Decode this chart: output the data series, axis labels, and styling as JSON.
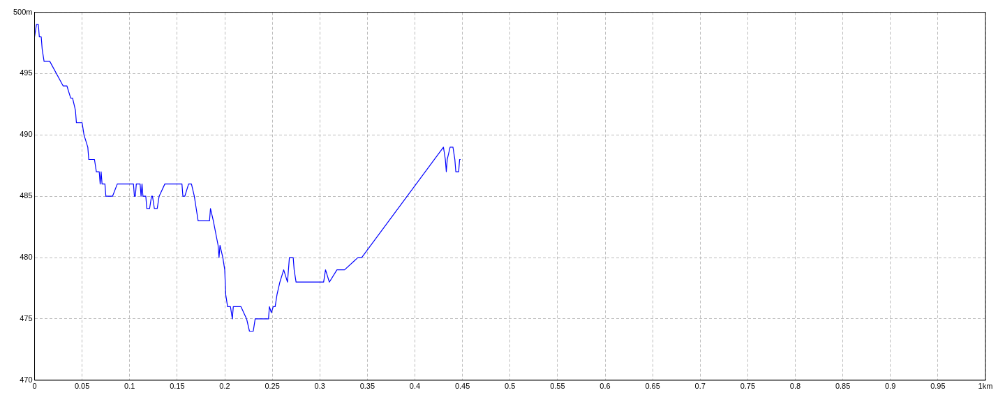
{
  "chart_data": {
    "type": "line",
    "x": [
      0,
      0.002,
      0.004,
      0.005,
      0.007,
      0.008,
      0.01,
      0.016,
      0.03,
      0.034,
      0.038,
      0.04,
      0.043,
      0.044,
      0.05,
      0.052,
      0.056,
      0.057,
      0.063,
      0.065,
      0.068,
      0.069,
      0.07,
      0.071,
      0.074,
      0.075,
      0.082,
      0.087,
      0.104,
      0.105,
      0.106,
      0.107,
      0.111,
      0.112,
      0.113,
      0.114,
      0.117,
      0.118,
      0.121,
      0.123,
      0.124,
      0.126,
      0.129,
      0.131,
      0.137,
      0.155,
      0.156,
      0.158,
      0.162,
      0.165,
      0.168,
      0.17,
      0.172,
      0.184,
      0.185,
      0.188,
      0.193,
      0.194,
      0.195,
      0.198,
      0.2,
      0.201,
      0.203,
      0.206,
      0.208,
      0.209,
      0.217,
      0.223,
      0.226,
      0.23,
      0.232,
      0.246,
      0.247,
      0.249,
      0.251,
      0.253,
      0.255,
      0.258,
      0.262,
      0.264,
      0.266,
      0.268,
      0.272,
      0.273,
      0.275,
      0.304,
      0.306,
      0.31,
      0.318,
      0.326,
      0.34,
      0.344,
      0.43,
      0.432,
      0.433,
      0.434,
      0.437,
      0.44,
      0.442,
      0.443,
      0.446,
      0.447,
      0.448
    ],
    "series": [
      {
        "color": "#0000ff",
        "values": [
          498,
          499,
          499,
          498,
          498,
          497,
          496,
          496,
          494,
          494,
          493,
          493,
          492,
          491,
          491,
          490,
          489,
          488,
          488,
          487,
          487,
          486,
          487,
          486,
          486,
          485,
          485,
          486,
          486,
          485,
          485,
          486,
          486,
          485,
          486,
          485,
          485,
          484,
          484,
          485,
          485,
          484,
          484,
          485,
          486,
          486,
          485,
          485,
          486,
          486,
          485,
          484,
          483,
          483,
          484,
          483,
          481,
          480,
          481,
          480,
          479,
          477,
          476,
          476,
          475,
          476,
          476,
          475,
          474,
          474,
          475,
          475,
          476,
          475.5,
          476,
          476,
          477,
          478,
          479,
          478.5,
          478,
          480,
          480,
          479,
          478,
          478,
          479,
          478,
          479,
          479,
          480,
          480,
          489,
          488,
          487,
          488,
          489,
          489,
          488,
          487,
          487,
          488,
          488
        ]
      }
    ],
    "xlim": [
      0,
      1
    ],
    "xticks": [
      0,
      0.05,
      0.1,
      0.15,
      0.2,
      0.25,
      0.3,
      0.35,
      0.4,
      0.45,
      0.5,
      0.55,
      0.6,
      0.65,
      0.7,
      0.75,
      0.8,
      0.85,
      0.9,
      0.95,
      {
        "value": 1,
        "label": "1km"
      }
    ],
    "ylim": [
      470,
      500
    ],
    "yticks": [
      470,
      475,
      480,
      485,
      490,
      495,
      {
        "value": 500,
        "label": "500m"
      }
    ],
    "grid": true,
    "legend": false,
    "marker": "none",
    "line_style": "solid"
  }
}
